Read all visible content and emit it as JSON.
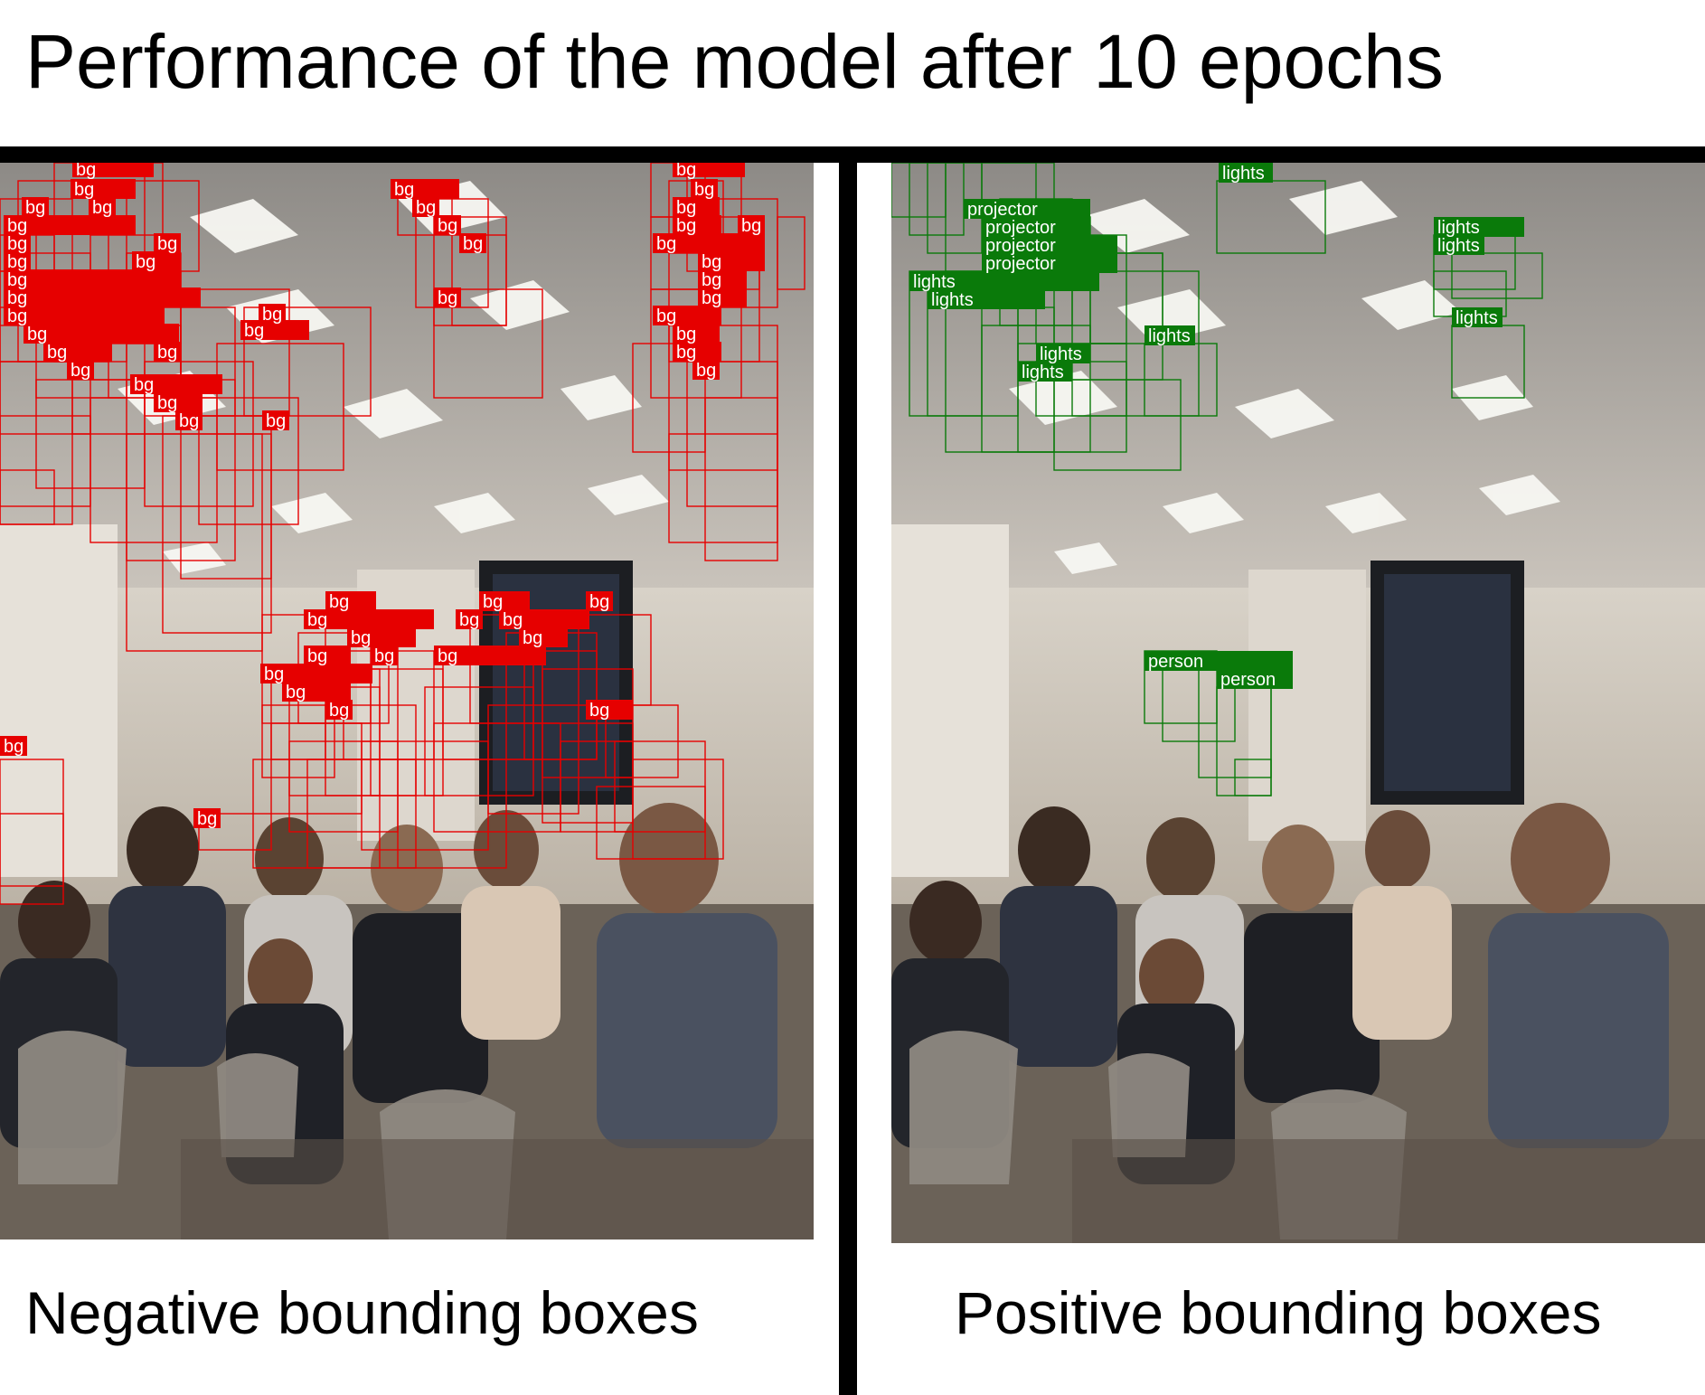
{
  "title": "Performance of the model after 10 epochs",
  "captions": {
    "left": "Negative bounding boxes",
    "right": "Positive bounding boxes"
  },
  "colors": {
    "negative": "#e60000",
    "positive": "#0a7a0a",
    "divider": "#000000"
  },
  "labels": {
    "negative": "bg",
    "lights": "lights",
    "projector": "projector",
    "person": "person"
  }
}
